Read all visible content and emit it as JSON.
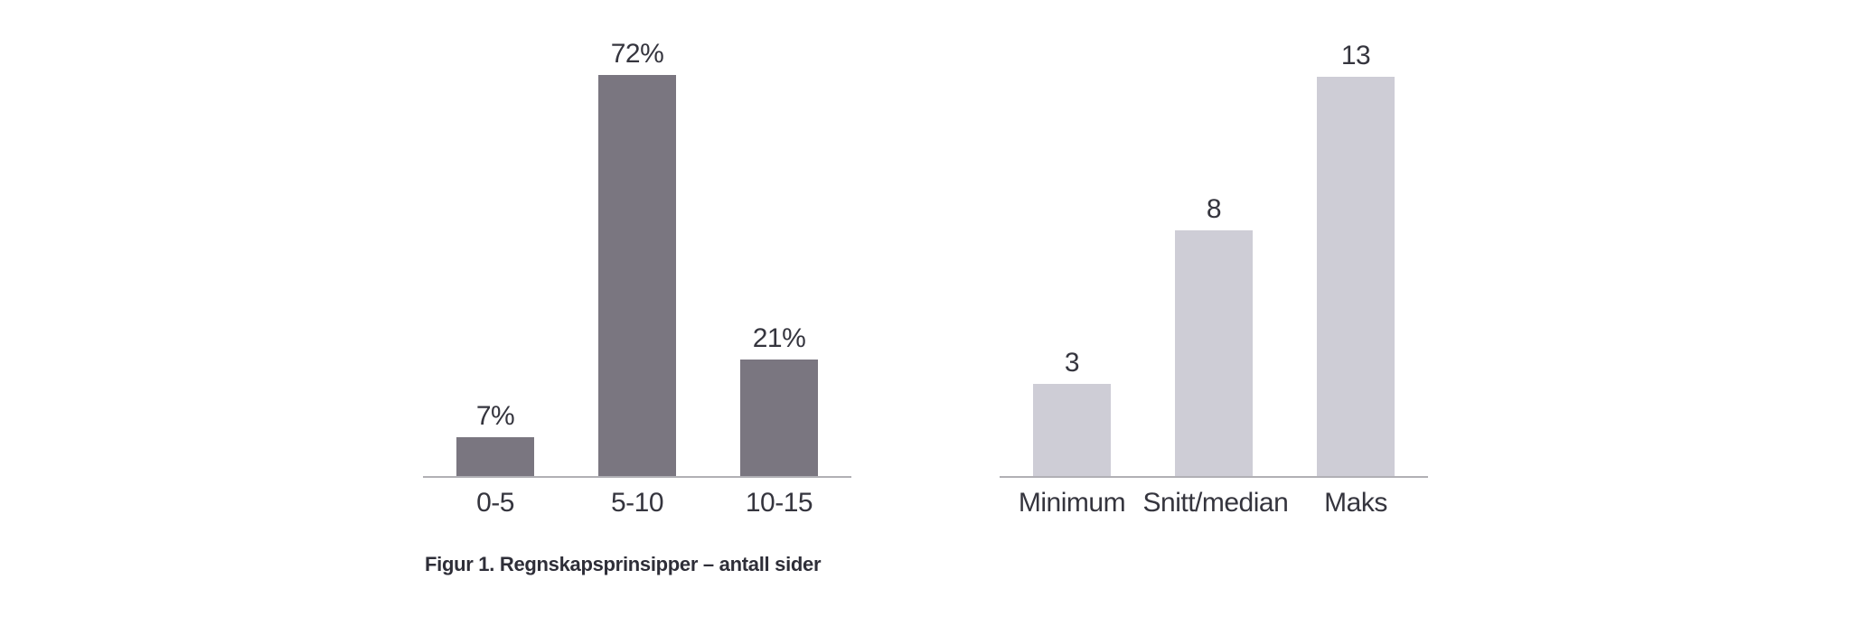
{
  "figure": {
    "caption": "Figur 1. Regnskapsprinsipper – antall sider"
  },
  "colors": {
    "dark_bar": "#7a7680",
    "light_bar": "#cecdd6",
    "axis_line": "#b1b0b5",
    "label_text": "#35353e",
    "caption_text": "#2e2e38",
    "background": "#ffffff"
  },
  "chart_data": [
    {
      "type": "bar",
      "title": "",
      "xlabel": "",
      "ylabel": "",
      "categories": [
        "0-5",
        "5-10",
        "10-15"
      ],
      "values": [
        7,
        72,
        21
      ],
      "value_labels": [
        "7%",
        "72%",
        "21%"
      ],
      "unit": "percent",
      "bar_color": "#7a7680",
      "ylim": [
        0,
        85.5
      ],
      "grid": false,
      "legend_position": "none",
      "y_axis_visible": false,
      "x_axis_line_visible": true
    },
    {
      "type": "bar",
      "title": "",
      "xlabel": "",
      "ylabel": "",
      "categories": [
        "Minimum",
        "Snitt/median",
        "Maks"
      ],
      "values": [
        3,
        8,
        13
      ],
      "value_labels": [
        "3",
        "8",
        "13"
      ],
      "unit": "count",
      "bar_color": "#cecdd6",
      "ylim": [
        0,
        15.5
      ],
      "grid": false,
      "legend_position": "none",
      "y_axis_visible": false,
      "x_axis_line_visible": true
    }
  ]
}
